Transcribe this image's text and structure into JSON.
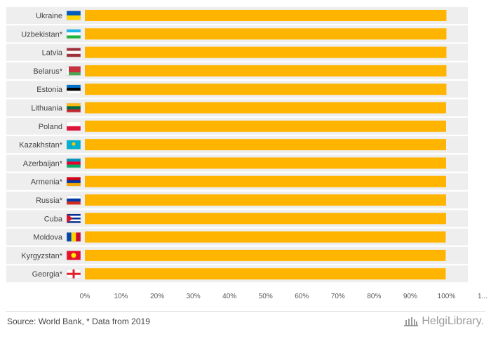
{
  "chart_data": {
    "type": "bar",
    "orientation": "horizontal",
    "categories": [
      "Ukraine",
      "Uzbekistan*",
      "Latvia",
      "Belarus*",
      "Estonia",
      "Lithuania",
      "Poland",
      "Kazakhstan*",
      "Azerbaijan*",
      "Armenia*",
      "Russia*",
      "Cuba",
      "Moldova",
      "Kyrgyzstan*",
      "Georgia*"
    ],
    "flags": [
      "ukraine-flag-icon",
      "uzbekistan-flag-icon",
      "latvia-flag-icon",
      "belarus-flag-icon",
      "estonia-flag-icon",
      "lithuania-flag-icon",
      "poland-flag-icon",
      "kazakhstan-flag-icon",
      "azerbaijan-flag-icon",
      "armenia-flag-icon",
      "russia-flag-icon",
      "cuba-flag-icon",
      "moldova-flag-icon",
      "kyrgyzstan-flag-icon",
      "georgia-flag-icon"
    ],
    "values": [
      100,
      100,
      100,
      100,
      100,
      99.9,
      99.9,
      99.9,
      99.9,
      99.9,
      99.9,
      99.9,
      99.8,
      99.8,
      99.8
    ],
    "xlim": [
      0,
      110
    ],
    "x_ticks": [
      "0%",
      "10%",
      "20%",
      "30%",
      "40%",
      "50%",
      "60%",
      "70%",
      "80%",
      "90%",
      "100%",
      "1..."
    ],
    "bar_color": "#FFB400",
    "grid": false
  },
  "footer": {
    "source": "Source: World Bank, * Data from 2019",
    "logo_text": "HelgiLibrary."
  }
}
